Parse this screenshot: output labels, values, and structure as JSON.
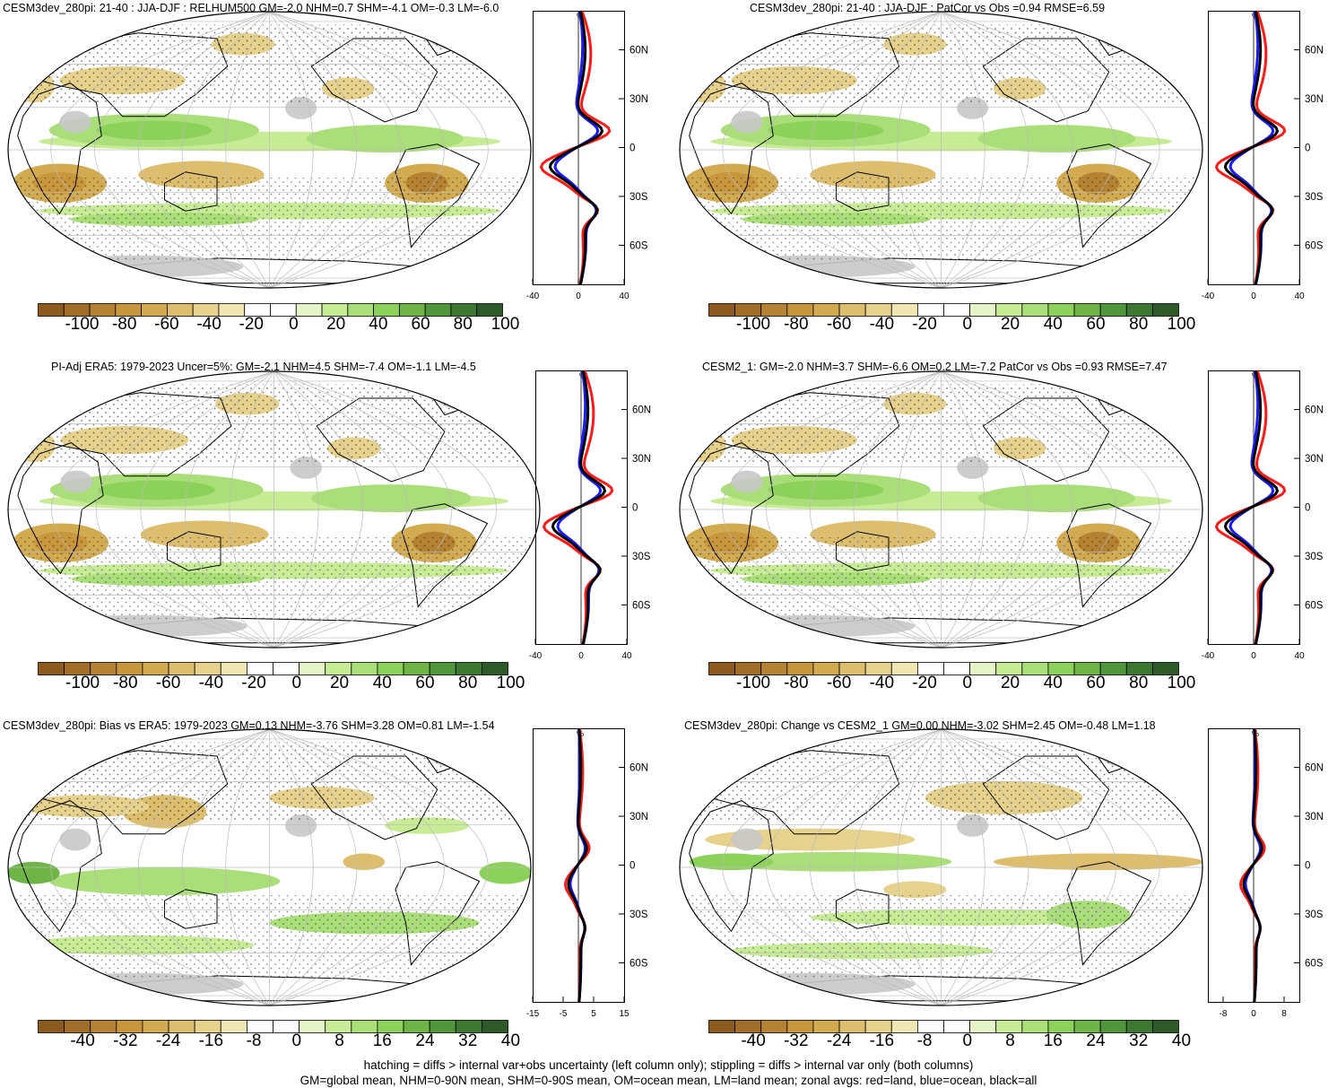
{
  "panels": [
    {
      "title": "CESM3dev_280pi: 21-40 : JJA-DJF : RELHUM500 GM=-2.0 NHM=0.7 SHM=-4.1 OM=-0.3 LM=-6.0",
      "zonal": {
        "unit": "%",
        "xticks": [
          "-40",
          "0",
          "40"
        ],
        "xlim": [
          -40,
          40
        ]
      },
      "colorbar": [
        "-100",
        "-80",
        "-60",
        "-40",
        "-20",
        "0",
        "20",
        "40",
        "60",
        "80",
        "100"
      ]
    },
    {
      "title": "CESM3dev_280pi: 21-40 : JJA-DJF : PatCor vs Obs =0.94 RMSE=6.59",
      "zonal": {
        "unit": "%",
        "xticks": [
          "-40",
          "0",
          "40"
        ],
        "xlim": [
          -40,
          40
        ]
      },
      "colorbar": [
        "-100",
        "-80",
        "-60",
        "-40",
        "-20",
        "0",
        "20",
        "40",
        "60",
        "80",
        "100"
      ]
    },
    {
      "title": "PI-Adj ERA5: 1979-2023 Uncer=5%: GM=-2.1 NHM=4.5 SHM=-7.4 OM=-1.1 LM=-4.5",
      "zonal": {
        "unit": "%",
        "xticks": [
          "-40",
          "0",
          "40"
        ],
        "xlim": [
          -40,
          40
        ]
      },
      "colorbar": [
        "-100",
        "-80",
        "-60",
        "-40",
        "-20",
        "0",
        "20",
        "40",
        "60",
        "80",
        "100"
      ]
    },
    {
      "title": "CESM2_1: GM=-2.0 NHM=3.7 SHM=-6.6 OM=0.2 LM=-7.2 PatCor vs Obs =0.93 RMSE=7.47",
      "zonal": {
        "unit": "%",
        "xticks": [
          "-40",
          "0",
          "40"
        ],
        "xlim": [
          -40,
          40
        ]
      },
      "colorbar": [
        "-100",
        "-80",
        "-60",
        "-40",
        "-20",
        "0",
        "20",
        "40",
        "60",
        "80",
        "100"
      ]
    },
    {
      "title": "CESM3dev_280pi: Bias vs ERA5: 1979-2023 GM=0.13 NHM=-3.76 SHM=3.28 OM=0.81 LM=-1.54",
      "zonal": {
        "unit": "%",
        "xticks": [
          "-15",
          "-5",
          "5",
          "15"
        ],
        "xlim": [
          -15,
          15
        ]
      },
      "colorbar": [
        "-40",
        "-32",
        "-24",
        "-16",
        "-8",
        "0",
        "8",
        "16",
        "24",
        "32",
        "40"
      ]
    },
    {
      "title": "CESM3dev_280pi: Change vs CESM2_1 GM=0.00 NHM=-3.02 SHM=2.45 OM=-0.48 LM=1.18",
      "zonal": {
        "unit": "%",
        "xticks": [
          "-8",
          "0",
          "8"
        ],
        "xlim": [
          -12,
          12
        ]
      },
      "colorbar": [
        "-40",
        "-32",
        "-24",
        "-16",
        "-8",
        "0",
        "8",
        "16",
        "24",
        "32",
        "40"
      ]
    }
  ],
  "lat_ticks": [
    "60N",
    "30N",
    "0",
    "30S",
    "60S"
  ],
  "colors": {
    "land_gray": "#c8c8c8",
    "brown": [
      "#8c5a1e",
      "#a06e28",
      "#b48232",
      "#c8963c",
      "#d2aa50",
      "#dcbe6e",
      "#e6d28c",
      "#f0e6b4"
    ],
    "green": [
      "#e6f5c8",
      "#c8ec96",
      "#aade78",
      "#8cd25a",
      "#6eb446",
      "#50963c",
      "#3c7832",
      "#2d5a28"
    ],
    "zonal_land": "#ff1a1a",
    "zonal_ocean": "#1a1aff",
    "zonal_all": "#000000"
  },
  "footer": [
    "hatching = diffs > internal var+obs uncertainty (left column only); stippling = diffs > internal var only (both columns)",
    "GM=global mean, NHM=0-90N mean, SHM=0-90S mean, OM=ocean mean, LM=land mean; zonal avgs: red=land, blue=ocean, black=all"
  ]
}
